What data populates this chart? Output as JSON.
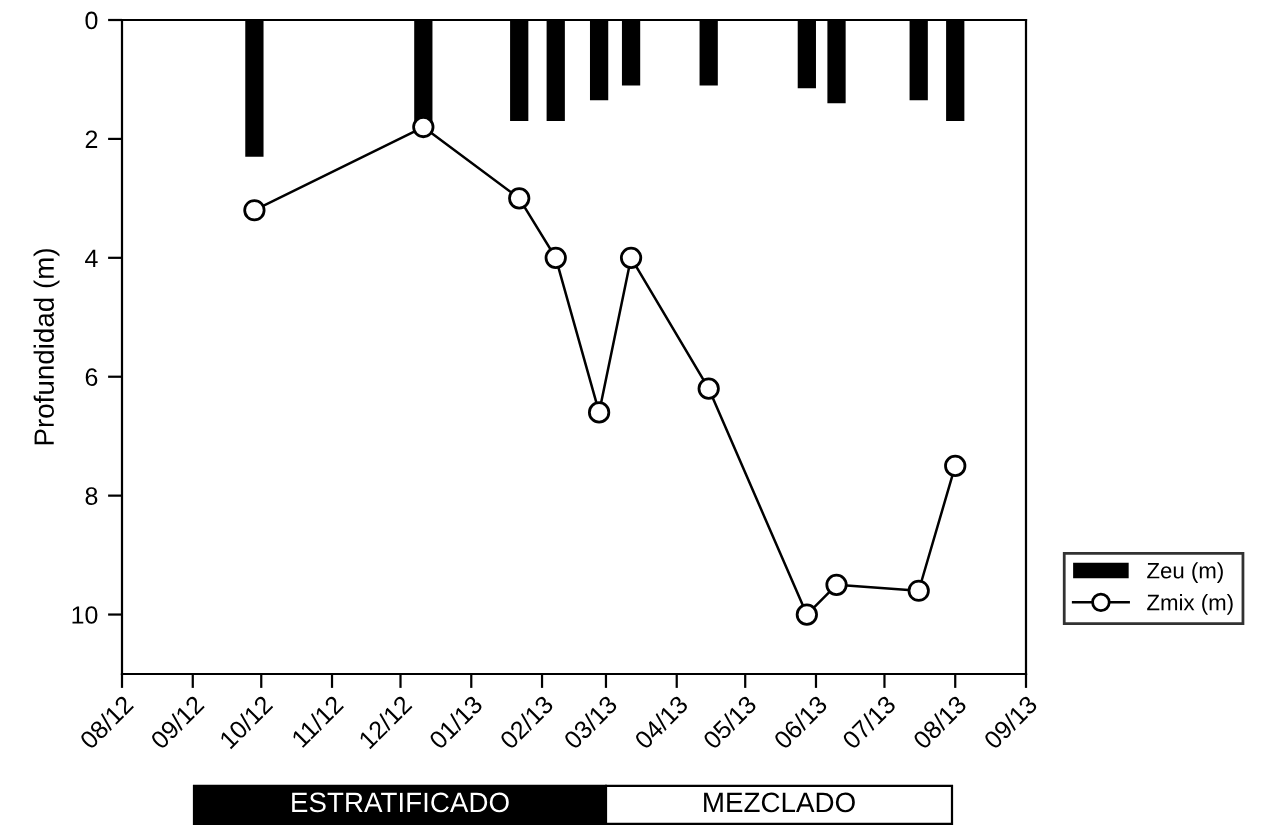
{
  "chart_data": {
    "type": "bar",
    "ylabel": "Profundidad (m)",
    "x": [
      "2012-09-28",
      "2012-12-11",
      "2013-01-22",
      "2013-02-07",
      "2013-02-26",
      "2013-03-12",
      "2013-04-15",
      "2013-05-28",
      "2013-06-10",
      "2013-07-16",
      "2013-08-01"
    ],
    "series": [
      {
        "name": "Zeu (m)",
        "color": "#000000",
        "values": [
          2.3,
          1.8,
          1.7,
          1.7,
          1.35,
          1.1,
          1.1,
          1.15,
          1.4,
          1.35,
          1.7
        ]
      },
      {
        "name": "Zmix (m)",
        "type": "line",
        "color": "#000000",
        "marker": "circle",
        "values": [
          3.2,
          1.8,
          3.0,
          4.0,
          6.6,
          4.0,
          6.2,
          10.0,
          9.5,
          9.6,
          7.5
        ]
      }
    ],
    "xlim": [
      "2012-08-01",
      "2013-09-01"
    ],
    "xticks": [
      {
        "value": "2012-08-01",
        "label": "08/12"
      },
      {
        "value": "2012-09-01",
        "label": "09/12"
      },
      {
        "value": "2012-10-01",
        "label": "10/12"
      },
      {
        "value": "2012-11-01",
        "label": "11/12"
      },
      {
        "value": "2012-12-01",
        "label": "12/12"
      },
      {
        "value": "2013-01-01",
        "label": "01/13"
      },
      {
        "value": "2013-02-01",
        "label": "02/13"
      },
      {
        "value": "2013-03-01",
        "label": "03/13"
      },
      {
        "value": "2013-04-01",
        "label": "04/13"
      },
      {
        "value": "2013-05-01",
        "label": "05/13"
      },
      {
        "value": "2013-06-01",
        "label": "06/13"
      },
      {
        "value": "2013-07-01",
        "label": "07/13"
      },
      {
        "value": "2013-08-01",
        "label": "08/13"
      },
      {
        "value": "2013-09-01",
        "label": "09/13"
      }
    ],
    "ylim": [
      11,
      0
    ],
    "yticks": [
      0,
      2,
      4,
      6,
      8,
      10
    ],
    "annotations": [
      "ESTRATIFICADO",
      "MEZCLADO"
    ],
    "grid": false,
    "legend": "right"
  }
}
